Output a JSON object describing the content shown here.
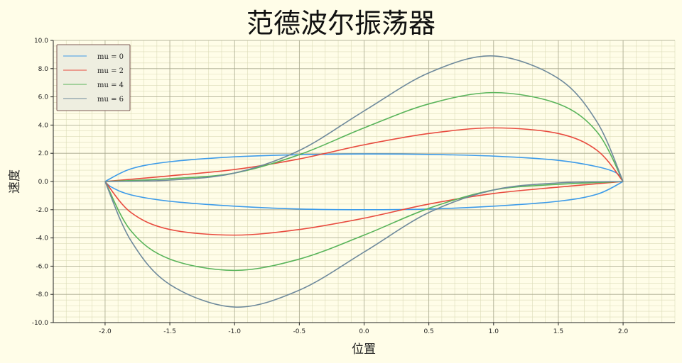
{
  "chart_data": {
    "type": "line",
    "title": "范德波尔振荡器",
    "xlabel": "位置",
    "ylabel": "速度",
    "xlim": [
      -2.4,
      2.4
    ],
    "ylim": [
      -10.0,
      10.0
    ],
    "xticks": [
      -2.0,
      -1.5,
      -1.0,
      -0.5,
      0.0,
      0.5,
      1.0,
      1.5,
      2.0
    ],
    "xtick_labels": [
      "-2.0",
      "-1.5",
      "-1.0",
      "-0.5",
      "0.0",
      "0.5",
      "1.0",
      "1.5",
      "2.0"
    ],
    "yticks": [
      -10,
      -8,
      -6,
      -4,
      -2,
      0,
      2,
      4,
      6,
      8,
      10
    ],
    "ytick_labels": [
      "-10.0",
      "-8.0",
      "-6.0",
      "-4.0",
      "-2.0",
      "0.0",
      "2.0",
      "4.0",
      "6.0",
      "8.0",
      "10.0"
    ],
    "grid": true,
    "legend_position": "top-left",
    "colors": {
      "background": "#fffde8",
      "major_grid": "#a9a98f",
      "minor_grid": "#dcdcb8"
    },
    "series": [
      {
        "name": "mu = 0",
        "color": "#3d9be9",
        "upper": [
          [
            -2.0,
            0.0
          ],
          [
            -1.8,
            0.9
          ],
          [
            -1.5,
            1.4
          ],
          [
            -1.0,
            1.75
          ],
          [
            -0.5,
            1.9
          ],
          [
            0.0,
            1.95
          ],
          [
            0.5,
            1.92
          ],
          [
            1.0,
            1.8
          ],
          [
            1.5,
            1.5
          ],
          [
            1.8,
            1.05
          ],
          [
            1.95,
            0.6
          ],
          [
            2.0,
            0.0
          ]
        ],
        "lower": [
          [
            -2.0,
            0.0
          ],
          [
            -1.95,
            -0.4
          ],
          [
            -1.8,
            -0.95
          ],
          [
            -1.5,
            -1.4
          ],
          [
            -1.0,
            -1.75
          ],
          [
            -0.5,
            -1.95
          ],
          [
            0.0,
            -2.0
          ],
          [
            0.5,
            -1.95
          ],
          [
            1.0,
            -1.75
          ],
          [
            1.5,
            -1.4
          ],
          [
            1.8,
            -0.9
          ],
          [
            2.0,
            0.0
          ]
        ]
      },
      {
        "name": "mu = 2",
        "color": "#e84a3e",
        "upper": [
          [
            -2.0,
            0.0
          ],
          [
            -1.5,
            0.4
          ],
          [
            -1.0,
            0.85
          ],
          [
            -0.5,
            1.6
          ],
          [
            0.0,
            2.6
          ],
          [
            0.5,
            3.4
          ],
          [
            1.0,
            3.8
          ],
          [
            1.5,
            3.4
          ],
          [
            1.8,
            2.2
          ],
          [
            2.0,
            0.0
          ]
        ],
        "lower": [
          [
            -2.0,
            0.0
          ],
          [
            -1.8,
            -2.2
          ],
          [
            -1.5,
            -3.4
          ],
          [
            -1.0,
            -3.8
          ],
          [
            -0.5,
            -3.4
          ],
          [
            0.0,
            -2.6
          ],
          [
            0.5,
            -1.6
          ],
          [
            1.0,
            -0.85
          ],
          [
            1.5,
            -0.4
          ],
          [
            2.0,
            0.0
          ]
        ]
      },
      {
        "name": "mu = 4",
        "color": "#59b45a",
        "upper": [
          [
            -2.0,
            0.0
          ],
          [
            -1.5,
            0.2
          ],
          [
            -1.0,
            0.6
          ],
          [
            -0.5,
            1.9
          ],
          [
            0.0,
            3.8
          ],
          [
            0.5,
            5.5
          ],
          [
            1.0,
            6.3
          ],
          [
            1.5,
            5.5
          ],
          [
            1.8,
            3.5
          ],
          [
            2.0,
            0.0
          ]
        ],
        "lower": [
          [
            -2.0,
            0.0
          ],
          [
            -1.8,
            -3.5
          ],
          [
            -1.5,
            -5.5
          ],
          [
            -1.0,
            -6.3
          ],
          [
            -0.5,
            -5.5
          ],
          [
            0.0,
            -3.8
          ],
          [
            0.5,
            -1.9
          ],
          [
            1.0,
            -0.6
          ],
          [
            1.5,
            -0.2
          ],
          [
            2.0,
            0.0
          ]
        ]
      },
      {
        "name": "mu = 6",
        "color": "#6f8a9c",
        "upper": [
          [
            -2.0,
            0.0
          ],
          [
            -1.5,
            0.1
          ],
          [
            -1.0,
            0.6
          ],
          [
            -0.5,
            2.2
          ],
          [
            0.0,
            5.0
          ],
          [
            0.5,
            7.7
          ],
          [
            1.0,
            8.9
          ],
          [
            1.5,
            7.3
          ],
          [
            1.8,
            4.2
          ],
          [
            2.0,
            0.0
          ]
        ],
        "lower": [
          [
            -2.0,
            0.0
          ],
          [
            -1.8,
            -4.2
          ],
          [
            -1.5,
            -7.3
          ],
          [
            -1.0,
            -8.9
          ],
          [
            -0.5,
            -7.7
          ],
          [
            0.0,
            -5.0
          ],
          [
            0.5,
            -2.2
          ],
          [
            1.0,
            -0.6
          ],
          [
            1.5,
            -0.1
          ],
          [
            2.0,
            0.0
          ]
        ]
      }
    ]
  }
}
